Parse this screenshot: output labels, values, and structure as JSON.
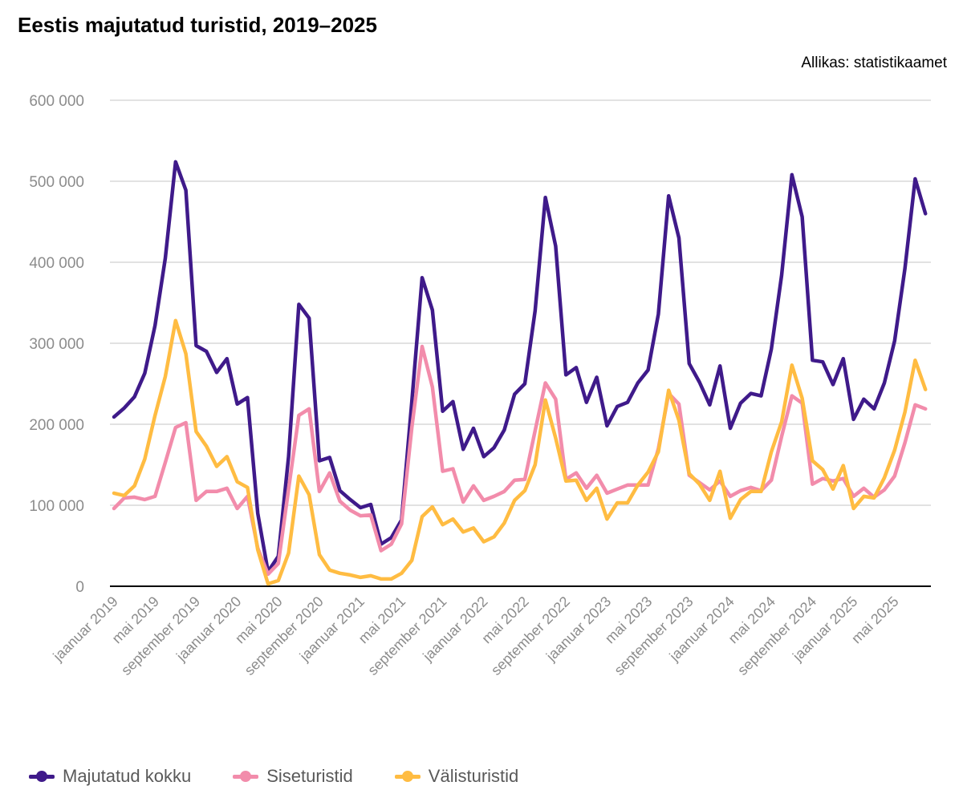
{
  "title": "Eestis majutatud turistid, 2019–2025",
  "source": "Allikas: statistikaamet",
  "chart_data": {
    "type": "line",
    "title": "Eestis majutatud turistid, 2019–2025",
    "xlabel": "",
    "ylabel": "",
    "ylim": [
      0,
      600000
    ],
    "yticks": [
      0,
      100000,
      200000,
      300000,
      400000,
      500000,
      600000
    ],
    "ytick_labels": [
      "0",
      "100 000",
      "200 000",
      "300 000",
      "400 000",
      "500 000",
      "600 000"
    ],
    "grid": true,
    "legend_position": "bottom-left",
    "x_start": "jaanuar 2019",
    "x_tick_every": 4,
    "xtick_labels": [
      "jaanuar 2019",
      "mai 2019",
      "september 2019",
      "jaanuar 2020",
      "mai 2020",
      "september 2020",
      "jaanuar 2021",
      "mai 2021",
      "september 2021",
      "jaanuar 2022",
      "mai 2022",
      "september 2022",
      "jaanuar 2023",
      "mai 2023",
      "september 2023",
      "jaanuar 2024",
      "mai 2024",
      "september 2024",
      "jaanuar 2025",
      "mai 2025"
    ],
    "series": [
      {
        "name": "Majutatud kokku",
        "color": "#3f1a8a",
        "values": [
          209000,
          220000,
          234000,
          263000,
          322000,
          405000,
          524000,
          489000,
          297000,
          290000,
          264000,
          281000,
          225000,
          233000,
          90000,
          18000,
          37000,
          160000,
          348000,
          331000,
          155000,
          159000,
          118000,
          107000,
          97000,
          101000,
          52000,
          60000,
          82000,
          228000,
          381000,
          341000,
          216000,
          228000,
          169000,
          195000,
          160000,
          171000,
          193000,
          237000,
          250000,
          340000,
          480000,
          420000,
          261000,
          270000,
          227000,
          258000,
          198000,
          222000,
          227000,
          251000,
          267000,
          336000,
          482000,
          430000,
          275000,
          252000,
          224000,
          272000,
          195000,
          226000,
          238000,
          235000,
          293000,
          384000,
          508000,
          456000,
          279000,
          277000,
          249000,
          281000,
          206000,
          231000,
          219000,
          251000,
          303000,
          392000,
          503000,
          460000
        ]
      },
      {
        "name": "Siseturistid",
        "color": "#f28cab",
        "values": [
          96000,
          109000,
          110000,
          107000,
          111000,
          153000,
          196000,
          202000,
          106000,
          117000,
          117000,
          121000,
          96000,
          111000,
          47000,
          15000,
          28000,
          120000,
          211000,
          219000,
          117000,
          140000,
          105000,
          94000,
          87000,
          88000,
          44000,
          52000,
          77000,
          196000,
          296000,
          246000,
          142000,
          145000,
          104000,
          124000,
          106000,
          111000,
          117000,
          131000,
          132000,
          192000,
          251000,
          231000,
          132000,
          140000,
          121000,
          137000,
          115000,
          120000,
          125000,
          125000,
          125000,
          170000,
          238000,
          225000,
          137000,
          128000,
          119000,
          130000,
          111000,
          118000,
          122000,
          118000,
          131000,
          185000,
          235000,
          226000,
          126000,
          133000,
          130000,
          133000,
          111000,
          121000,
          110000,
          119000,
          136000,
          177000,
          224000,
          219000
        ]
      },
      {
        "name": "Välisturistid",
        "color": "#ffbc42",
        "values": [
          115000,
          112000,
          124000,
          157000,
          211000,
          259000,
          328000,
          287000,
          191000,
          173000,
          148000,
          160000,
          129000,
          122000,
          45000,
          3000,
          7000,
          41000,
          136000,
          113000,
          39000,
          20000,
          16000,
          14000,
          11000,
          13000,
          9000,
          9000,
          16000,
          32000,
          86000,
          98000,
          76000,
          83000,
          67000,
          72000,
          55000,
          61000,
          78000,
          106000,
          118000,
          150000,
          230000,
          183000,
          130000,
          131000,
          106000,
          121000,
          83000,
          103000,
          103000,
          125000,
          141000,
          166000,
          242000,
          205000,
          139000,
          126000,
          106000,
          142000,
          84000,
          107000,
          117000,
          117000,
          166000,
          203000,
          273000,
          232000,
          155000,
          144000,
          120000,
          149000,
          96000,
          111000,
          109000,
          134000,
          168000,
          215000,
          279000,
          243000
        ]
      }
    ]
  },
  "legend": {
    "items": [
      {
        "label": "Majutatud kokku",
        "color": "#3f1a8a"
      },
      {
        "label": "Siseturistid",
        "color": "#f28cab"
      },
      {
        "label": "Välisturistid",
        "color": "#ffbc42"
      }
    ]
  }
}
